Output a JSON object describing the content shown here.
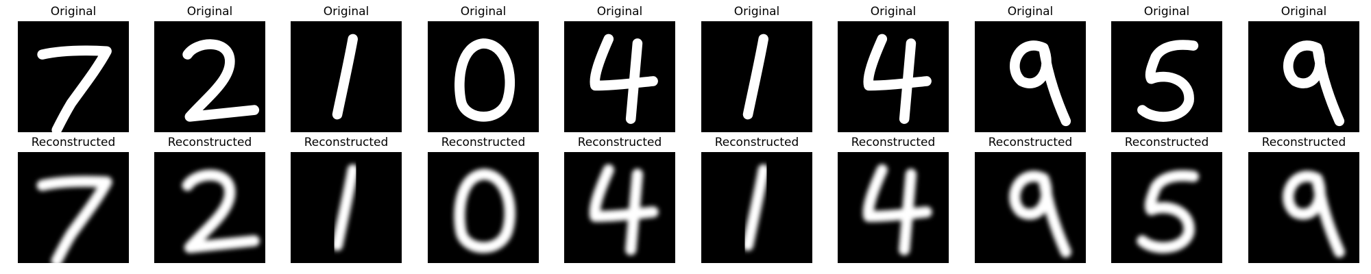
{
  "rows": [
    {
      "title": "Original",
      "style": "sharp",
      "items": [
        {
          "digit": "7"
        },
        {
          "digit": "2"
        },
        {
          "digit": "1"
        },
        {
          "digit": "0"
        },
        {
          "digit": "4"
        },
        {
          "digit": "1"
        },
        {
          "digit": "4"
        },
        {
          "digit": "9"
        },
        {
          "digit": "5"
        },
        {
          "digit": "9"
        }
      ]
    },
    {
      "title": "Reconstructed",
      "style": "blurred",
      "items": [
        {
          "digit": "7"
        },
        {
          "digit": "2"
        },
        {
          "digit": "1"
        },
        {
          "digit": "0"
        },
        {
          "digit": "4"
        },
        {
          "digit": "1"
        },
        {
          "digit": "4"
        },
        {
          "digit": "9"
        },
        {
          "digit": "5"
        },
        {
          "digit": "9"
        }
      ]
    }
  ],
  "colors": {
    "background": "#000000",
    "stroke": "#ffffff",
    "page": "#ffffff"
  }
}
